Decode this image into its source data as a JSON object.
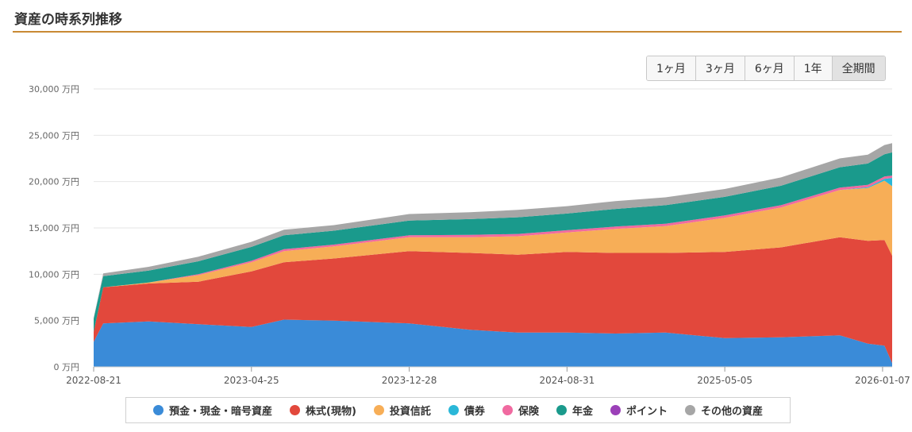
{
  "header": {
    "title": "資産の時系列推移"
  },
  "range_buttons": [
    {
      "label": "1ヶ月",
      "active": false
    },
    {
      "label": "3ヶ月",
      "active": false
    },
    {
      "label": "6ヶ月",
      "active": false
    },
    {
      "label": "1年",
      "active": false
    },
    {
      "label": "全期間",
      "active": true
    }
  ],
  "chart_data": {
    "type": "area",
    "stacked": true,
    "x": [
      "2022-08-21",
      "2022-09-05",
      "2022-11-15",
      "2023-02-01",
      "2023-04-25",
      "2023-06-15",
      "2023-09-01",
      "2023-12-28",
      "2024-04-01",
      "2024-06-15",
      "2024-08-31",
      "2024-11-15",
      "2025-02-01",
      "2025-05-05",
      "2025-08-01",
      "2025-11-01",
      "2025-12-15",
      "2026-01-10",
      "2026-01-22"
    ],
    "x_ticks": [
      "2022-08-21",
      "2023-04-25",
      "2023-12-28",
      "2024-08-31",
      "2025-05-05",
      "2026-01-07"
    ],
    "y_ticks": [
      "0 万円",
      "5,000 万円",
      "10,000 万円",
      "15,000 万円",
      "20,000 万円",
      "25,000 万円",
      "30,000 万円"
    ],
    "ylim": [
      0,
      30000
    ],
    "y_unit": "万円",
    "grid": true,
    "legend_position": "bottom",
    "series": [
      {
        "name": "預金・現金・暗号資産",
        "color": "#3a8bd8",
        "values": [
          2700,
          4700,
          4900,
          4600,
          4300,
          5100,
          5000,
          4700,
          4000,
          3700,
          3700,
          3600,
          3700,
          3100,
          3200,
          3400,
          2500,
          2300,
          400
        ]
      },
      {
        "name": "株式(現物)",
        "color": "#e2483c",
        "values": [
          1100,
          3900,
          4100,
          4600,
          6000,
          6200,
          6700,
          7800,
          8300,
          8400,
          8700,
          8700,
          8600,
          9300,
          9700,
          10600,
          11100,
          11400,
          11600
        ]
      },
      {
        "name": "投資信託",
        "color": "#f7ae57",
        "values": [
          0,
          0,
          100,
          700,
          1000,
          1200,
          1300,
          1500,
          1700,
          2000,
          2100,
          2600,
          2900,
          3700,
          4300,
          5100,
          5700,
          6400,
          7500
        ]
      },
      {
        "name": "債券",
        "color": "#2ab7d8",
        "values": [
          0,
          0,
          0,
          0,
          0,
          0,
          0,
          0,
          0,
          0,
          0,
          0,
          0,
          0,
          0,
          0,
          100,
          200,
          900
        ]
      },
      {
        "name": "保険",
        "color": "#f06aa0",
        "values": [
          0,
          0,
          0,
          100,
          150,
          200,
          200,
          200,
          250,
          250,
          250,
          250,
          250,
          250,
          250,
          250,
          250,
          250,
          250
        ]
      },
      {
        "name": "年金",
        "color": "#1a9a8c",
        "values": [
          1400,
          1200,
          1300,
          1400,
          1500,
          1500,
          1500,
          1600,
          1700,
          1800,
          1800,
          1900,
          2000,
          2000,
          2100,
          2200,
          2300,
          2400,
          2500
        ]
      },
      {
        "name": "ポイント",
        "color": "#9b40b8",
        "values": [
          0,
          0,
          0,
          0,
          0,
          0,
          0,
          0,
          0,
          0,
          0,
          0,
          0,
          0,
          0,
          0,
          0,
          0,
          0
        ]
      },
      {
        "name": "その他の資産",
        "color": "#a6a6a6",
        "values": [
          100,
          300,
          400,
          500,
          550,
          600,
          600,
          700,
          750,
          800,
          800,
          850,
          850,
          850,
          900,
          950,
          950,
          1000,
          1000
        ]
      }
    ]
  }
}
